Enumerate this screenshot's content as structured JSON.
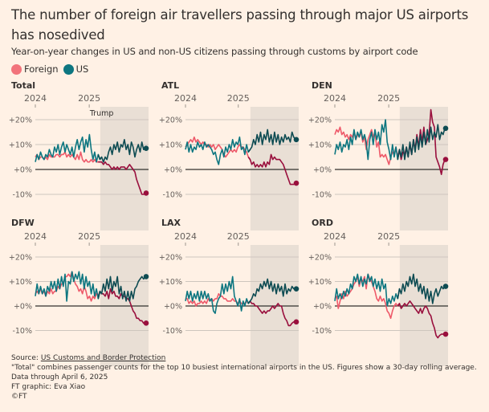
{
  "header": {
    "title": "The number of foreign air travellers passing through major US airports has nosedived",
    "subtitle": "Year-on-year changes in US and non-US citizens passing through customs by airport code"
  },
  "legend": [
    {
      "label": "Foreign",
      "color": "#F2737B"
    },
    {
      "label": "US",
      "color": "#0D7680"
    }
  ],
  "colors": {
    "foreign_pre": "#EE5A6A",
    "foreign_post": "#990F3D",
    "us_pre": "#0D7680",
    "us_post": "#0D4B52",
    "shade": "#E9DFD5",
    "grid": "#CEC6BE",
    "zero": "#33302E",
    "axis_text": "#66605C"
  },
  "footer": {
    "source_prefix": "Source: ",
    "source_link": "US Customs and Border Protection",
    "note": "\"Total\" combines passenger counts for the top 10 busiest international airports in the US. Figures show a 30-day rolling average.",
    "data_through": "Data through April 6, 2025",
    "credit": "FT graphic: Eva Xiao",
    "copyright": "©FT"
  },
  "chart_data": [
    {
      "type": "line",
      "title": "Total",
      "xlabel": "",
      "ylabel": "",
      "x_ticks": [
        {
          "label": "2024",
          "t": 0.0
        },
        {
          "label": "2025",
          "t": 0.49
        }
      ],
      "y_ticks": [
        "+20%",
        "+10%",
        "+0%",
        "-10%"
      ],
      "y_tick_values": [
        20,
        10,
        0,
        -10
      ],
      "ylim": [
        -15,
        25
      ],
      "shade": {
        "label": "Trump",
        "from_t": 0.59,
        "to_t": 1.0
      },
      "grid": true,
      "series": [
        {
          "name": "US",
          "values": [
            3,
            6,
            4,
            7,
            5,
            4,
            6,
            5,
            8,
            6,
            5,
            9,
            7,
            10,
            6,
            9,
            11,
            7,
            10,
            8,
            6,
            9,
            5,
            9,
            12,
            8,
            11,
            13,
            7,
            12,
            9,
            14,
            8,
            4,
            7,
            3,
            6,
            4,
            5,
            3,
            5,
            4,
            7,
            9,
            6,
            10,
            8,
            11,
            7,
            10,
            9,
            12,
            8,
            10,
            6,
            11,
            9,
            5,
            8,
            10,
            7,
            11,
            8,
            9
          ],
          "end": 8.5
        },
        {
          "name": "Foreign",
          "values": [
            5,
            6,
            4,
            5,
            5,
            4,
            5,
            4,
            6,
            5,
            5,
            5,
            6,
            6,
            5,
            6,
            6,
            7,
            5,
            6,
            5,
            6,
            5,
            4,
            6,
            4,
            7,
            4,
            3,
            4,
            3,
            3,
            4,
            3,
            4,
            3,
            3,
            3,
            3,
            2,
            3,
            2,
            2,
            1,
            0,
            1,
            0,
            1,
            0,
            1,
            1,
            1,
            0,
            1,
            2,
            1,
            0,
            -1,
            -4,
            -6,
            -8,
            -10,
            -10,
            -9.5
          ],
          "end": -9.5
        }
      ]
    },
    {
      "type": "line",
      "title": "ATL",
      "xlabel": "",
      "ylabel": "",
      "x_ticks": [
        {
          "label": "2024",
          "t": 0.0
        },
        {
          "label": "2025",
          "t": 0.48
        }
      ],
      "y_ticks": [
        "+20%",
        "+10%",
        "+0%",
        "-10%"
      ],
      "y_tick_values": [
        20,
        10,
        0,
        -10
      ],
      "ylim": [
        -15,
        25
      ],
      "shade": {
        "label": "",
        "from_t": 0.59,
        "to_t": 1.0
      },
      "grid": true,
      "series": [
        {
          "name": "US",
          "values": [
            8,
            11,
            7,
            10,
            7,
            9,
            8,
            11,
            9,
            10,
            8,
            11,
            9,
            10,
            9,
            8,
            6,
            7,
            4,
            2,
            6,
            8,
            5,
            9,
            7,
            10,
            8,
            12,
            9,
            11,
            10,
            13,
            8,
            9,
            6,
            10,
            7,
            8,
            9,
            12,
            10,
            14,
            11,
            15,
            10,
            14,
            12,
            16,
            11,
            14,
            10,
            15,
            11,
            14,
            10,
            13,
            11,
            14,
            12,
            13,
            11,
            15,
            13,
            12
          ],
          "end": 12
        },
        {
          "name": "Foreign",
          "values": [
            9,
            10,
            11,
            12,
            11,
            13,
            11,
            12,
            11,
            10,
            11,
            10,
            10,
            9,
            10,
            9,
            10,
            8,
            9,
            10,
            9,
            8,
            6,
            5,
            6,
            7,
            8,
            7,
            8,
            7,
            9,
            10,
            9,
            9,
            8,
            7,
            5,
            4,
            2,
            3,
            1,
            2,
            1,
            2,
            1,
            3,
            1,
            3,
            2,
            6,
            4,
            5,
            4,
            4,
            4,
            3,
            2,
            0,
            -2,
            -4,
            -6,
            -6,
            -6,
            -5.5
          ],
          "end": -5.5
        }
      ]
    },
    {
      "type": "line",
      "title": "DEN",
      "xlabel": "",
      "ylabel": "",
      "x_ticks": [
        {
          "label": "2024",
          "t": 0.0
        },
        {
          "label": "2025",
          "t": 0.49
        }
      ],
      "y_ticks": [
        "+20%",
        "+10%",
        "+0%",
        "-10%"
      ],
      "y_tick_values": [
        20,
        10,
        0,
        -10
      ],
      "ylim": [
        -15,
        25
      ],
      "shade": {
        "label": "",
        "from_t": 0.59,
        "to_t": 1.0
      },
      "grid": true,
      "series": [
        {
          "name": "US",
          "values": [
            6,
            10,
            8,
            11,
            7,
            10,
            9,
            12,
            8,
            13,
            10,
            16,
            12,
            15,
            13,
            16,
            12,
            14,
            11,
            4,
            12,
            15,
            10,
            16,
            12,
            15,
            10,
            18,
            15,
            20,
            11,
            8,
            4,
            10,
            5,
            9,
            4,
            8,
            5,
            10,
            4,
            9,
            5,
            11,
            6,
            12,
            7,
            13,
            8,
            14,
            9,
            15,
            10,
            16,
            11,
            17,
            12,
            15,
            13,
            18,
            12,
            15,
            14,
            16.5
          ],
          "end": 16.5
        },
        {
          "name": "Foreign",
          "values": [
            14,
            16,
            15,
            17,
            14,
            15,
            13,
            14,
            12,
            14,
            13,
            15,
            12,
            14,
            13,
            15,
            11,
            13,
            8,
            12,
            14,
            16,
            13,
            15,
            9,
            11,
            5,
            6,
            5,
            6,
            4,
            2,
            5,
            7,
            6,
            9,
            5,
            8,
            4,
            7,
            6,
            9,
            5,
            10,
            6,
            12,
            8,
            14,
            9,
            16,
            11,
            17,
            10,
            12,
            14,
            24,
            19,
            17,
            5,
            3,
            1,
            -2,
            2,
            4
          ],
          "end": 4
        }
      ]
    },
    {
      "type": "line",
      "title": "DFW",
      "xlabel": "",
      "ylabel": "",
      "x_ticks": [
        {
          "label": "2024",
          "t": 0.0
        },
        {
          "label": "2025",
          "t": 0.49
        }
      ],
      "y_ticks": [
        "+20%",
        "+10%",
        "+0%",
        "-10%"
      ],
      "y_tick_values": [
        20,
        10,
        0,
        -10
      ],
      "ylim": [
        -15,
        25
      ],
      "shade": {
        "label": "",
        "from_t": 0.59,
        "to_t": 1.0
      },
      "grid": true,
      "series": [
        {
          "name": "US",
          "values": [
            4,
            9,
            5,
            8,
            5,
            7,
            4,
            8,
            6,
            10,
            7,
            10,
            6,
            11,
            7,
            12,
            8,
            13,
            2,
            10,
            9,
            14,
            10,
            13,
            11,
            14,
            9,
            13,
            7,
            12,
            8,
            10,
            5,
            9,
            4,
            7,
            3,
            6,
            5,
            9,
            6,
            11,
            7,
            12,
            6,
            10,
            8,
            12,
            5,
            8,
            3,
            6,
            2,
            6,
            2,
            6,
            3,
            7,
            8,
            10,
            11,
            12,
            11,
            12
          ],
          "end": 12
        },
        {
          "name": "Foreign",
          "values": [
            5,
            6,
            5,
            7,
            5,
            6,
            4,
            6,
            5,
            7,
            5,
            6,
            6,
            8,
            7,
            9,
            9,
            12,
            12,
            13,
            12,
            14,
            11,
            9,
            8,
            6,
            7,
            5,
            8,
            6,
            3,
            4,
            2,
            4,
            3,
            5,
            4,
            6,
            5,
            5,
            4,
            6,
            3,
            7,
            5,
            6,
            4,
            4,
            3,
            5,
            4,
            4,
            3,
            3,
            2,
            0,
            -2,
            -3,
            -5,
            -5,
            -6,
            -6,
            -7,
            -7
          ],
          "end": -7
        }
      ]
    },
    {
      "type": "line",
      "title": "LAX",
      "xlabel": "",
      "ylabel": "",
      "x_ticks": [
        {
          "label": "2024",
          "t": 0.0
        },
        {
          "label": "2025",
          "t": 0.48
        }
      ],
      "y_ticks": [
        "+20%",
        "+10%",
        "+0%",
        "-10%"
      ],
      "y_tick_values": [
        20,
        10,
        0,
        -10
      ],
      "ylim": [
        -15,
        25
      ],
      "shade": {
        "label": "",
        "from_t": 0.59,
        "to_t": 1.0
      },
      "grid": true,
      "series": [
        {
          "name": "US",
          "values": [
            2,
            6,
            3,
            6,
            2,
            5,
            3,
            6,
            2,
            6,
            3,
            6,
            3,
            5,
            2,
            3,
            -2,
            -3,
            1,
            3,
            4,
            9,
            5,
            9,
            6,
            10,
            7,
            12,
            4,
            2,
            0,
            3,
            -2,
            2,
            0,
            3,
            1,
            2,
            3,
            5,
            4,
            7,
            6,
            9,
            7,
            10,
            8,
            11,
            7,
            10,
            6,
            9,
            5,
            9,
            6,
            8,
            4,
            9,
            5,
            7,
            6,
            8,
            7,
            7
          ],
          "end": 7
        },
        {
          "name": "Foreign",
          "values": [
            3,
            3,
            1,
            2,
            1,
            2,
            0,
            1,
            1,
            2,
            1,
            2,
            1,
            3,
            2,
            3,
            2,
            3,
            3,
            5,
            4,
            4,
            3,
            3,
            2,
            2,
            2,
            3,
            2,
            2,
            1,
            2,
            1,
            1,
            1,
            2,
            1,
            2,
            1,
            1,
            0,
            0,
            -1,
            -2,
            -3,
            -2,
            -3,
            -2,
            -2,
            -1,
            0,
            -1,
            0,
            1,
            0,
            0,
            -3,
            -5,
            -6,
            -8,
            -8,
            -7,
            -6.5,
            -6.5
          ],
          "end": -6.5
        }
      ]
    },
    {
      "type": "line",
      "title": "ORD",
      "xlabel": "",
      "ylabel": "",
      "x_ticks": [
        {
          "label": "2024",
          "t": 0.0
        },
        {
          "label": "2025",
          "t": 0.49
        }
      ],
      "y_ticks": [
        "+20%",
        "+10%",
        "+0%",
        "-10%"
      ],
      "y_tick_values": [
        20,
        10,
        0,
        -10
      ],
      "ylim": [
        -15,
        25
      ],
      "shade": {
        "label": "",
        "from_t": 0.59,
        "to_t": 1.0
      },
      "grid": true,
      "series": [
        {
          "name": "US",
          "values": [
            2,
            7,
            3,
            5,
            3,
            6,
            4,
            7,
            5,
            9,
            7,
            12,
            10,
            13,
            9,
            12,
            8,
            11,
            9,
            13,
            10,
            12,
            8,
            11,
            7,
            10,
            6,
            11,
            7,
            9,
            0,
            3,
            1,
            4,
            2,
            5,
            3,
            7,
            5,
            9,
            6,
            10,
            8,
            12,
            9,
            13,
            8,
            11,
            6,
            9,
            5,
            8,
            3,
            7,
            2,
            6,
            1,
            5,
            7,
            4,
            6,
            8,
            7,
            8
          ],
          "end": 8
        },
        {
          "name": "Foreign",
          "values": [
            3,
            4,
            -1,
            2,
            5,
            3,
            6,
            4,
            5,
            6,
            7,
            9,
            10,
            12,
            8,
            11,
            10,
            12,
            7,
            13,
            11,
            10,
            8,
            6,
            3,
            2,
            4,
            2,
            3,
            1,
            -2,
            -3,
            -5,
            -2,
            0,
            1,
            0,
            1,
            -1,
            0,
            1,
            0,
            1,
            2,
            1,
            0,
            -1,
            -2,
            -3,
            -1,
            -3,
            -1,
            0,
            -1,
            -3,
            -4,
            -7,
            -9,
            -12,
            -13,
            -12,
            -11.5,
            -11.5,
            -11.5
          ],
          "end": -11.5
        }
      ]
    }
  ]
}
